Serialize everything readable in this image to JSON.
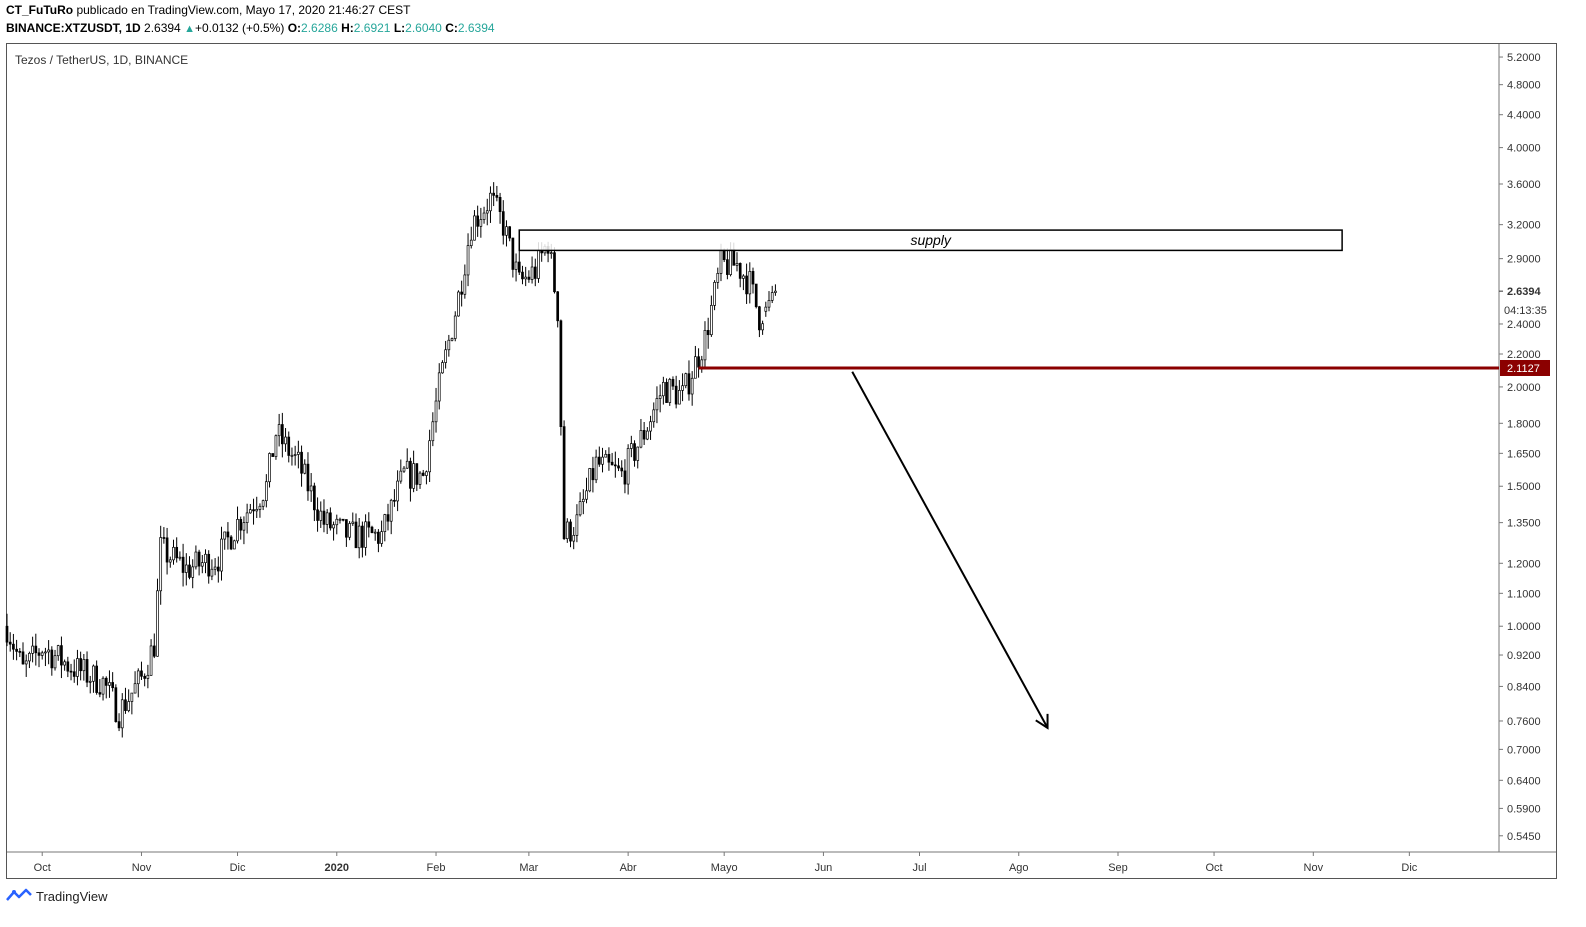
{
  "header": {
    "author": "CT_FuTuRo",
    "published": "publicado en TradingView.com, Mayo 17, 2020 21:46:27 CEST",
    "symbol": "BINANCE:XTZUSDT, 1D",
    "last": "2.6394",
    "change": "+0.0132 (+0.5%)",
    "o_label": "O:",
    "o_value": "2.6286",
    "h_label": "H:",
    "h_value": "2.6921",
    "l_label": "L:",
    "l_value": "2.6040",
    "c_label": "C:",
    "c_value": "2.6394"
  },
  "symbol_title": "Tezos / TetherUS, 1D, BINANCE",
  "footer": {
    "brand": "TradingView",
    "logo_icon": "tradingview-logo-icon"
  },
  "chart_data": {
    "type": "candlestick",
    "yscale": "log",
    "ylim": [
      0.52,
      5.4
    ],
    "y_ticks": [
      "5.2000",
      "4.8000",
      "4.4000",
      "4.0000",
      "3.6000",
      "3.2000",
      "2.9000",
      "2.4000",
      "2.2000",
      "2.0000",
      "1.8000",
      "1.6500",
      "1.5000",
      "1.3500",
      "1.2000",
      "1.1000",
      "1.0000",
      "0.9200",
      "0.8400",
      "0.7600",
      "0.7000",
      "0.6400",
      "0.5900",
      "0.5450"
    ],
    "x_ticks": [
      "Oct",
      "Nov",
      "Dic",
      "2020",
      "Feb",
      "Mar",
      "Abr",
      "Mayo",
      "Jun",
      "Jul",
      "Ago",
      "Sep",
      "Oct",
      "Nov",
      "Dic"
    ],
    "x_range": [
      "2019-09-20",
      "2020-12-29"
    ],
    "last_price_label": "2.6394",
    "countdown_label": "04:13:35",
    "level_label": "2.1127",
    "colors": {
      "candle_up": "#ffffff",
      "candle_down": "#000000",
      "level_line": "#8b0000",
      "axis_text": "#333333"
    },
    "path": [
      [
        "2019-09-20",
        1.0
      ],
      [
        "2019-09-25",
        0.88
      ],
      [
        "2019-10-01",
        0.94
      ],
      [
        "2019-10-10",
        0.89
      ],
      [
        "2019-10-20",
        0.85
      ],
      [
        "2019-10-25",
        0.78
      ],
      [
        "2019-11-01",
        0.86
      ],
      [
        "2019-11-05",
        0.95
      ],
      [
        "2019-11-07",
        1.25
      ],
      [
        "2019-11-15",
        1.18
      ],
      [
        "2019-11-25",
        1.22
      ],
      [
        "2019-12-01",
        1.35
      ],
      [
        "2019-12-10",
        1.5
      ],
      [
        "2019-12-13",
        1.75
      ],
      [
        "2019-12-20",
        1.6
      ],
      [
        "2019-12-28",
        1.35
      ],
      [
        "2020-01-05",
        1.3
      ],
      [
        "2020-01-15",
        1.3
      ],
      [
        "2020-01-22",
        1.55
      ],
      [
        "2020-01-28",
        1.55
      ],
      [
        "2020-02-02",
        2.0
      ],
      [
        "2020-02-08",
        2.6
      ],
      [
        "2020-02-12",
        3.2
      ],
      [
        "2020-02-18",
        3.45
      ],
      [
        "2020-02-22",
        3.2
      ],
      [
        "2020-02-27",
        2.7
      ],
      [
        "2020-03-03",
        2.8
      ],
      [
        "2020-03-07",
        3.05
      ],
      [
        "2020-03-10",
        2.5
      ],
      [
        "2020-03-12",
        1.3
      ],
      [
        "2020-03-16",
        1.35
      ],
      [
        "2020-03-22",
        1.6
      ],
      [
        "2020-03-30",
        1.55
      ],
      [
        "2020-04-06",
        1.75
      ],
      [
        "2020-04-12",
        2.0
      ],
      [
        "2020-04-18",
        1.95
      ],
      [
        "2020-04-25",
        2.3
      ],
      [
        "2020-04-30",
        2.85
      ],
      [
        "2020-05-05",
        2.85
      ],
      [
        "2020-05-09",
        2.7
      ],
      [
        "2020-05-12",
        2.45
      ],
      [
        "2020-05-17",
        2.64
      ]
    ],
    "candles": [
      {
        "d": "2020-05-14",
        "o": 2.49,
        "h": 2.56,
        "l": 2.45,
        "c": 2.52
      },
      {
        "d": "2020-05-15",
        "o": 2.52,
        "h": 2.64,
        "l": 2.49,
        "c": 2.57
      },
      {
        "d": "2020-05-16",
        "o": 2.57,
        "h": 2.68,
        "l": 2.55,
        "c": 2.6286
      },
      {
        "d": "2020-05-17",
        "o": 2.6286,
        "h": 2.6921,
        "l": 2.604,
        "c": 2.6394
      }
    ],
    "annotations": [
      {
        "type": "rectangle",
        "label": "supply",
        "x": [
          "2020-02-27",
          "2020-11-10"
        ],
        "y": [
          2.97,
          3.15
        ]
      },
      {
        "type": "horizontal_line",
        "y": 2.1127,
        "from": "2020-04-23"
      },
      {
        "type": "arrow",
        "from": [
          "2020-06-10",
          2.09
        ],
        "to": [
          "2020-08-10",
          0.745
        ]
      }
    ]
  }
}
